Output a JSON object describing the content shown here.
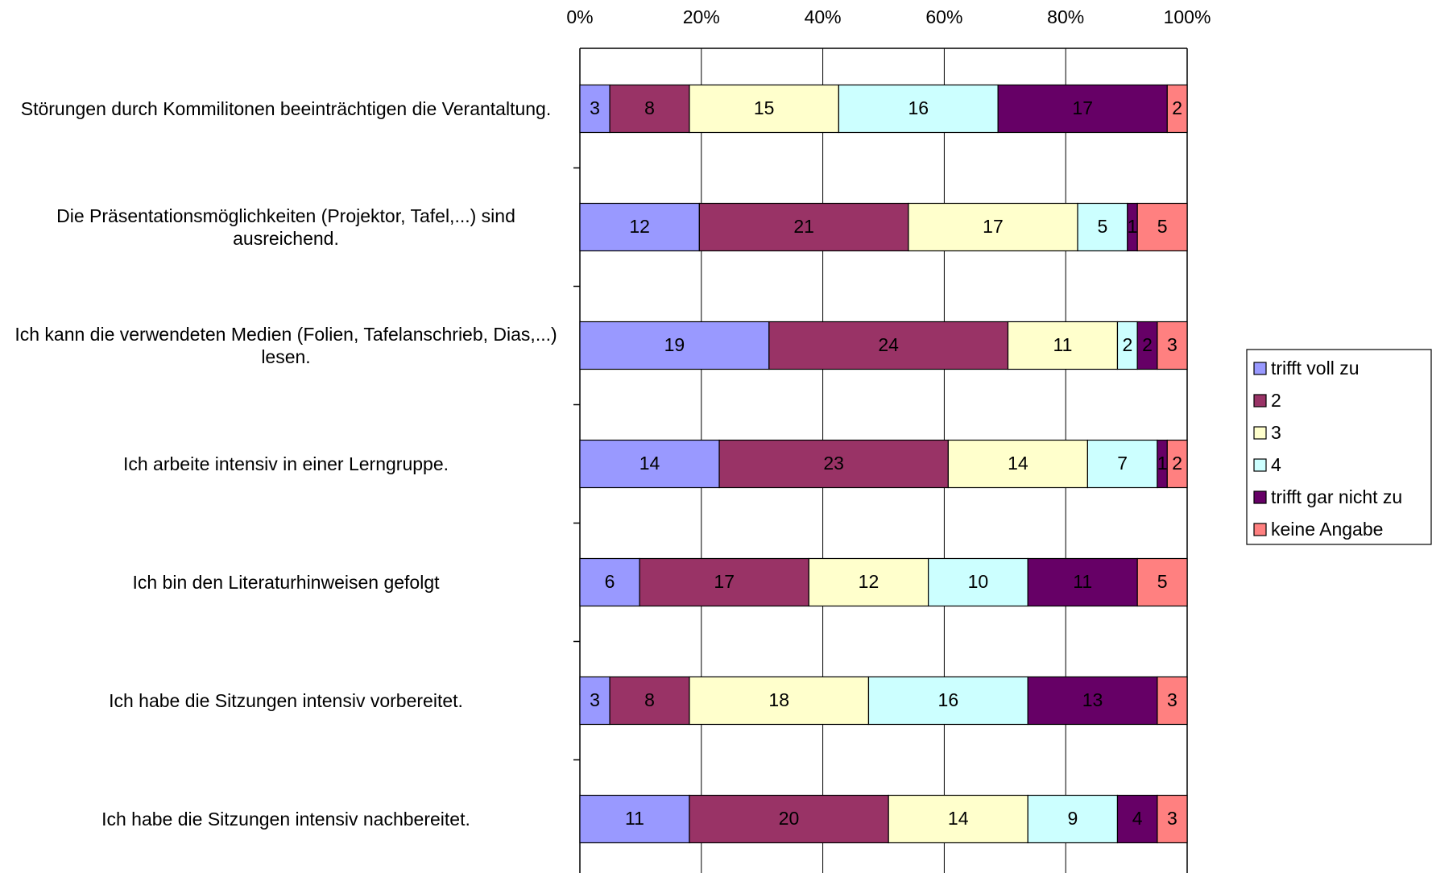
{
  "chart_data": {
    "type": "bar",
    "orientation": "horizontal",
    "stacking": "percent",
    "categories": [
      "Störungen durch Kommilitonen beeinträchtigen die Verantaltung.",
      "Die Präsentationsmöglichkeiten (Projektor, Tafel,...) sind ausreichend.",
      "Ich kann die verwendeten Medien (Folien, Tafelanschrieb, Dias,...) lesen.",
      "Ich arbeite intensiv in einer Lerngruppe.",
      "Ich bin den Literaturhinweisen gefolgt",
      "Ich habe die Sitzungen intensiv vorbereitet.",
      "Ich habe die Sitzungen intensiv nachbereitet."
    ],
    "series": [
      {
        "name": "trifft voll zu",
        "color": "#9999ff",
        "values": [
          3,
          12,
          19,
          14,
          6,
          3,
          11
        ]
      },
      {
        "name": "2",
        "color": "#993366",
        "values": [
          8,
          21,
          24,
          23,
          17,
          8,
          20
        ]
      },
      {
        "name": "3",
        "color": "#ffffcc",
        "values": [
          15,
          17,
          11,
          14,
          12,
          18,
          14
        ]
      },
      {
        "name": "4",
        "color": "#ccffff",
        "values": [
          16,
          5,
          2,
          7,
          10,
          16,
          9
        ]
      },
      {
        "name": "trifft gar nicht zu",
        "color": "#660066",
        "values": [
          17,
          1,
          2,
          1,
          11,
          13,
          4
        ]
      },
      {
        "name": "keine Angabe",
        "color": "#ff8080",
        "values": [
          2,
          5,
          3,
          2,
          5,
          3,
          3
        ]
      }
    ],
    "xlim": [
      0,
      100
    ],
    "xticks": [
      {
        "value": 0,
        "label": "0%"
      },
      {
        "value": 20,
        "label": "20%"
      },
      {
        "value": 40,
        "label": "40%"
      },
      {
        "value": 60,
        "label": "60%"
      },
      {
        "value": 80,
        "label": "80%"
      },
      {
        "value": 100,
        "label": "100%"
      }
    ],
    "grid": true,
    "legend": "right"
  }
}
